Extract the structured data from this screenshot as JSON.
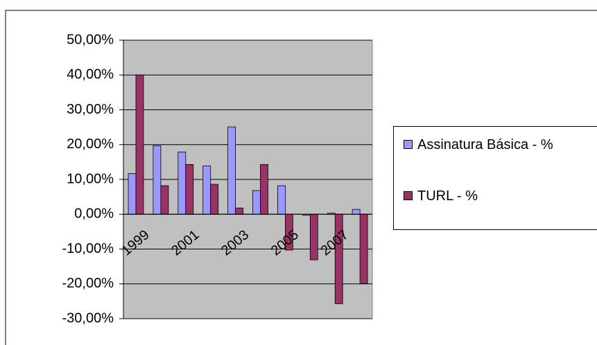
{
  "chart_data": {
    "type": "bar",
    "categories": [
      "1999",
      null,
      "2001",
      null,
      "2003",
      null,
      "2005",
      null,
      "2007",
      null
    ],
    "series": [
      {
        "name": "Assinatura Básica - %",
        "color": "#9999ff",
        "values": [
          11.7,
          19.7,
          17.9,
          13.9,
          25.1,
          6.8,
          8.2,
          -0.3,
          0.3,
          1.4
        ]
      },
      {
        "name": "TURL - %",
        "color": "#993366",
        "values": [
          40.0,
          8.2,
          14.3,
          8.6,
          1.8,
          14.3,
          -10.3,
          -13.1,
          -25.7,
          -19.9
        ]
      }
    ],
    "ylim": [
      -30,
      50
    ],
    "yticks": [
      {
        "value": -30,
        "label": "-30,00%"
      },
      {
        "value": -20,
        "label": "-20,00%"
      },
      {
        "value": -10,
        "label": "-10,00%"
      },
      {
        "value": 0,
        "label": "0,00%"
      },
      {
        "value": 10,
        "label": "10,00%"
      },
      {
        "value": 20,
        "label": "20,00%"
      },
      {
        "value": 30,
        "label": "30,00%"
      },
      {
        "value": 40,
        "label": "40,00%"
      },
      {
        "value": 50,
        "label": "50,00%"
      }
    ],
    "grid": true,
    "plot_background": "#c0c0c0",
    "legend": "right"
  }
}
